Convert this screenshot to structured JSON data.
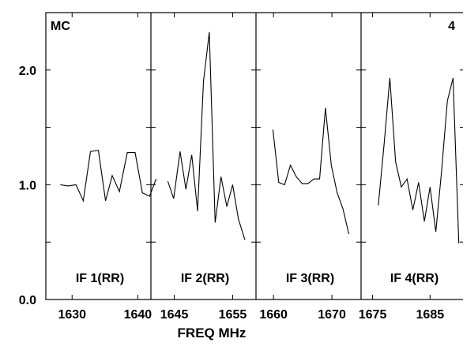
{
  "chart_data": {
    "type": "line",
    "corner_left": "MC",
    "corner_right": "4",
    "xlabel": "FREQ MHz",
    "ylabel": "",
    "ylim": [
      0,
      2.5
    ],
    "y_ticks": [
      {
        "value": 0.0,
        "label": "0.0"
      },
      {
        "value": 1.0,
        "label": "1.0"
      },
      {
        "value": 2.0,
        "label": "2.0"
      }
    ],
    "y_minor_ticks": [
      0.5,
      1.5
    ],
    "panels": [
      {
        "label": "IF 1(RR)",
        "xlim": [
          1626,
          1642
        ],
        "x_ticks": [
          1630,
          1640
        ],
        "x_tick_labels": [
          "1630",
          "1640"
        ],
        "series": {
          "x": [
            1628.2,
            1629.4,
            1630.6,
            1631.7,
            1632.8,
            1634.0,
            1635.1,
            1636.1,
            1637.2,
            1638.4,
            1639.6,
            1640.7,
            1641.8,
            1642.8
          ],
          "y": [
            1.0,
            0.99,
            1.0,
            0.86,
            1.29,
            1.3,
            0.86,
            1.08,
            0.94,
            1.28,
            1.28,
            0.93,
            0.9,
            1.05
          ]
        }
      },
      {
        "label": "IF 2(RR)",
        "xlim": [
          1641,
          1659
        ],
        "x_ticks": [
          1645,
          1655
        ],
        "x_tick_labels": [
          "1645",
          "1655"
        ],
        "series": {
          "x": [
            1643.9,
            1644.9,
            1646.0,
            1647.0,
            1648.0,
            1649.0,
            1650.0,
            1651.0,
            1652.0,
            1653.0,
            1654.0,
            1655.0,
            1656.0,
            1657.1
          ],
          "y": [
            1.03,
            0.88,
            1.29,
            0.96,
            1.26,
            0.77,
            1.9,
            2.33,
            0.67,
            1.07,
            0.81,
            1.0,
            0.7,
            0.52
          ]
        }
      },
      {
        "label": "IF 3(RR)",
        "xlim": [
          1657,
          1675
        ],
        "x_ticks": [
          1660,
          1670
        ],
        "x_tick_labels": [
          "1660",
          "1670"
        ],
        "series": {
          "x": [
            1659.9,
            1660.9,
            1661.9,
            1662.9,
            1663.9,
            1664.9,
            1665.9,
            1666.9,
            1667.9,
            1668.9,
            1669.9,
            1670.9,
            1671.9,
            1672.9
          ],
          "y": [
            1.48,
            1.02,
            1.0,
            1.17,
            1.07,
            1.01,
            1.01,
            1.05,
            1.05,
            1.67,
            1.17,
            0.93,
            0.79,
            0.57
          ]
        }
      },
      {
        "label": "IF 4(RR)",
        "xlim": [
          1673,
          1691
        ],
        "x_ticks": [
          1675,
          1685
        ],
        "x_tick_labels": [
          "1675",
          "1685"
        ],
        "series": {
          "x": [
            1676.0,
            1677.0,
            1678.0,
            1679.0,
            1680.0,
            1681.0,
            1682.0,
            1683.0,
            1684.0,
            1685.0,
            1686.0,
            1687.0,
            1688.0,
            1689.0,
            1690.0
          ],
          "y": [
            0.82,
            1.35,
            1.93,
            1.2,
            0.98,
            1.05,
            0.78,
            1.02,
            0.68,
            0.98,
            0.59,
            1.12,
            1.73,
            1.93,
            0.49
          ]
        }
      }
    ]
  }
}
